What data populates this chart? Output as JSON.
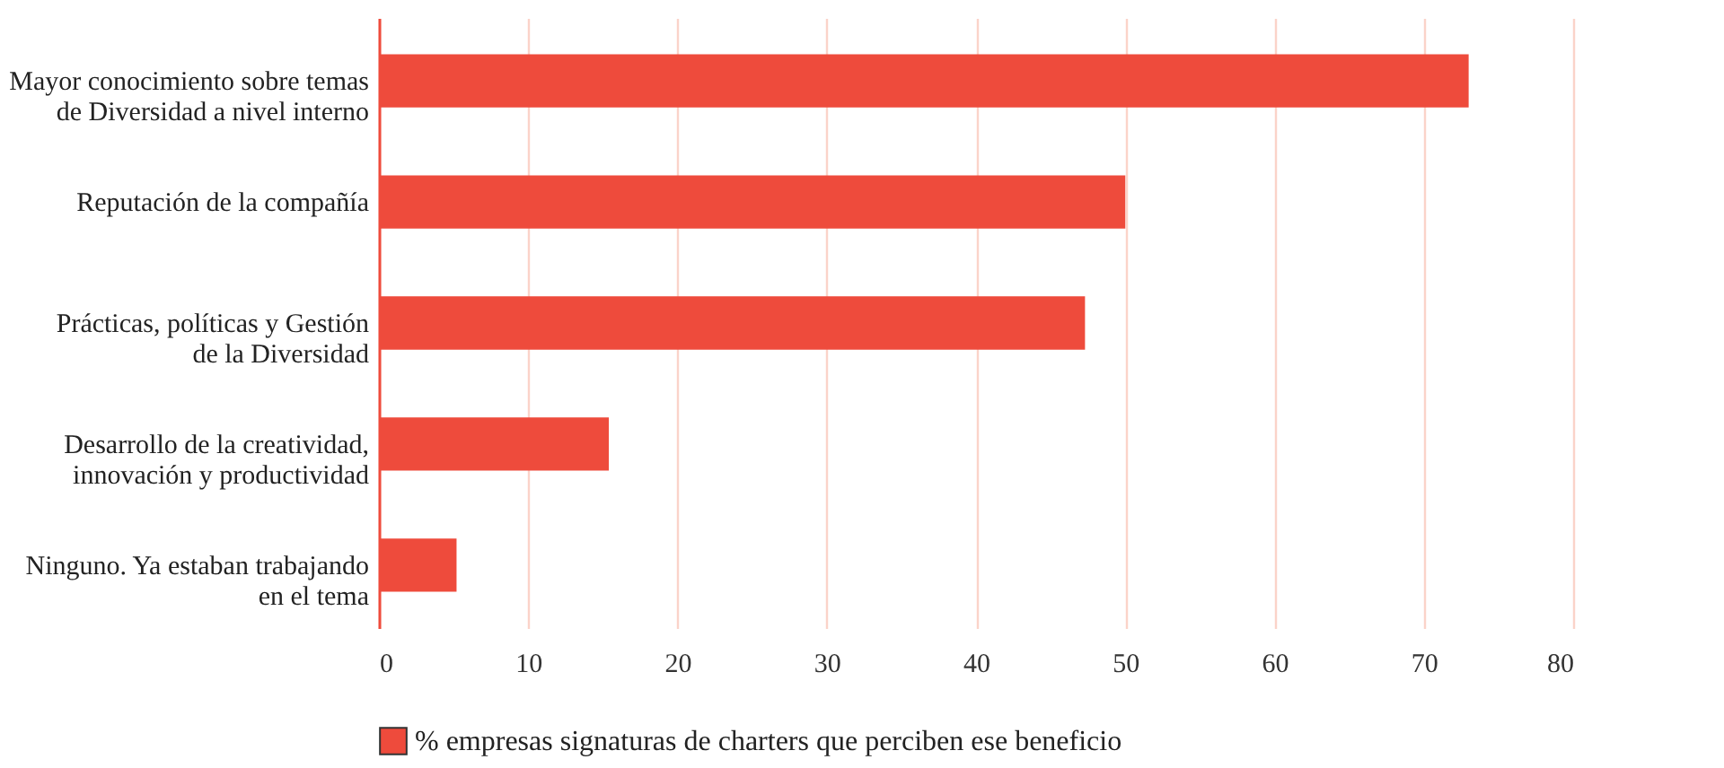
{
  "chart_data": {
    "type": "bar",
    "orientation": "horizontal",
    "categories": [
      "Mayor conocimiento sobre temas de Diversidad a nivel interno",
      "Reputación de la compañía",
      "Prácticas, políticas y Gestión de la Diversidad",
      "Desarrollo de la creatividad, innovación y productividad",
      "Ninguno. Ya estaban trabajando en el tema"
    ],
    "series": [
      {
        "name": "% empresas signaturas de charters que perciben ese beneficio",
        "color": "#ee4b3c",
        "values": [
          73,
          50,
          47.3,
          15.4,
          5.2
        ]
      }
    ],
    "xlim": [
      0,
      80
    ],
    "xticks": [
      0,
      10,
      20,
      30,
      40,
      50,
      60,
      70,
      80
    ],
    "grid": "x",
    "legend": "bottom"
  }
}
